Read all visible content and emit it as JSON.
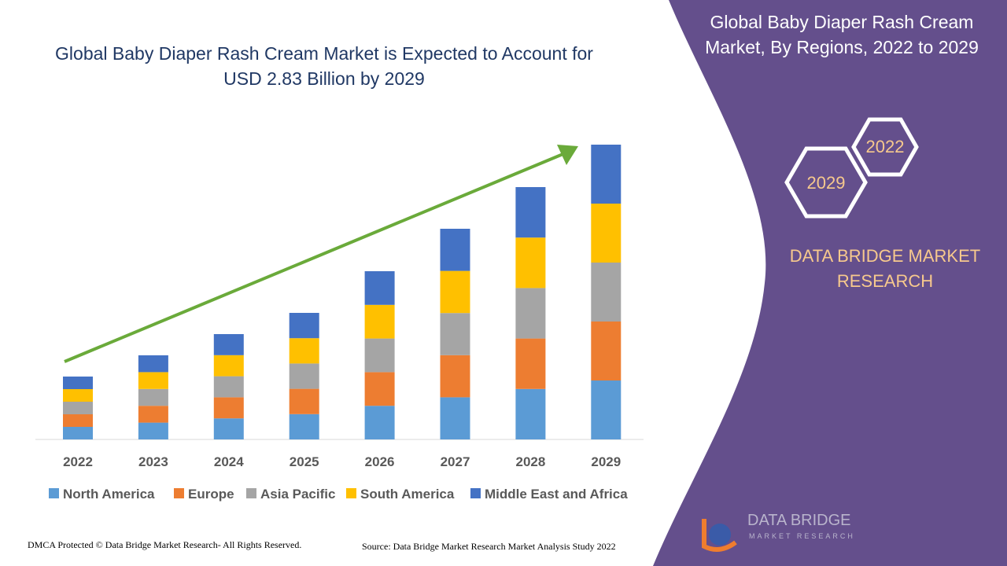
{
  "chart_data": {
    "type": "stacked_bar",
    "title": "Global Baby Diaper Rash Cream Market is Expected to Account for USD 2.83 Billion by 2029",
    "categories": [
      "2022",
      "2023",
      "2024",
      "2025",
      "2026",
      "2027",
      "2028",
      "2029"
    ],
    "series": [
      {
        "name": "North America",
        "color": "#5b9bd5",
        "values": [
          16,
          21.4,
          26.8,
          32.2,
          42.8,
          53.6,
          64.2,
          75
        ]
      },
      {
        "name": "Europe",
        "color": "#ed7d31",
        "values": [
          16,
          21.4,
          26.8,
          32.2,
          42.8,
          53.6,
          64.2,
          75
        ]
      },
      {
        "name": "Asia Pacific",
        "color": "#a5a5a5",
        "values": [
          16,
          21.4,
          26.8,
          32.2,
          42.8,
          53.6,
          64.2,
          75
        ]
      },
      {
        "name": "South America",
        "color": "#ffc000",
        "values": [
          16,
          21.4,
          26.8,
          32.2,
          42.8,
          53.6,
          64.2,
          75
        ]
      },
      {
        "name": "Middle East and Africa",
        "color": "#4472c4",
        "values": [
          16,
          21.4,
          26.8,
          32.2,
          42.8,
          53.6,
          64.2,
          75
        ]
      }
    ],
    "legend": "bottom"
  },
  "side_title": "Global Baby Diaper Rash Cream Market, By Regions, 2022 to 2029",
  "badges": [
    "2022",
    "2029"
  ],
  "brand": "DATA BRIDGE MARKET RESEARCH",
  "logo": {
    "name": "DATA BRIDGE",
    "tagline": "MARKET RESEARCH"
  },
  "footer": {
    "left": "DMCA Protected © Data Bridge Market Research- All Rights Reserved.",
    "right": "Source: Data Bridge Market Research Market Analysis Study 2022"
  }
}
